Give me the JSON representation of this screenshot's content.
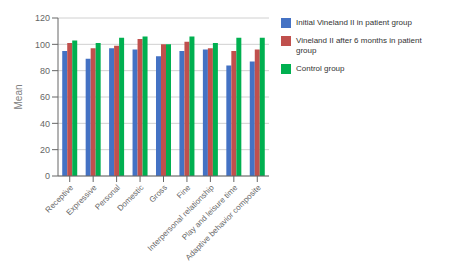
{
  "chart_data": {
    "type": "bar",
    "categories": [
      "Receptive",
      "Expressive",
      "Personal",
      "Domestic",
      "Gross",
      "Fine",
      "Interpersonal relationship",
      "Play and leisure time",
      "Adaptive behavior composite"
    ],
    "series": [
      {
        "name": "Initial Vineland II in patient group",
        "color": "#4472C4",
        "values": [
          95,
          89,
          97,
          96,
          91,
          95,
          96,
          84,
          87
        ]
      },
      {
        "name": "Vineland II after 6 months in patient\ngroup",
        "color": "#C0504D",
        "values": [
          101,
          97,
          99,
          104,
          100,
          102,
          97,
          95,
          96
        ]
      },
      {
        "name": "Control group",
        "color": "#00B050",
        "values": [
          103,
          101,
          105,
          106,
          100,
          106,
          101,
          105,
          105
        ]
      }
    ],
    "ylabel": "Mean",
    "ylim": [
      0,
      120
    ],
    "yticks": [
      0,
      20,
      40,
      60,
      80,
      100,
      120
    ],
    "grid": true,
    "legend": "right"
  }
}
